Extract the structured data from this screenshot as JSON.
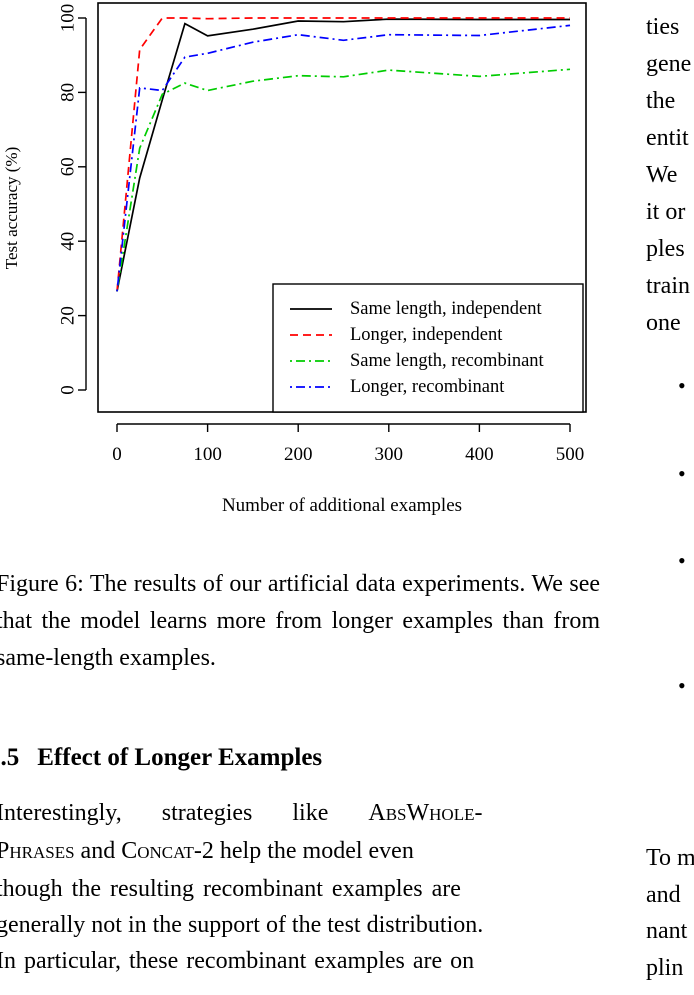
{
  "chart_data": {
    "type": "line",
    "xlabel": "Number of additional examples",
    "ylabel": "Test accuracy (%)",
    "xlim": [
      0,
      500
    ],
    "ylim": [
      0,
      100
    ],
    "xticks": [
      0,
      100,
      200,
      300,
      400,
      500
    ],
    "yticks": [
      0,
      20,
      40,
      60,
      80,
      100
    ],
    "legend_position": "bottom-right",
    "grid": false,
    "series": [
      {
        "name": "Same length, independent",
        "color": "#000000",
        "dash": "solid",
        "x": [
          0,
          25,
          50,
          75,
          100,
          150,
          200,
          250,
          300,
          400,
          500
        ],
        "y": [
          26.5,
          57,
          78,
          98.5,
          95.2,
          97,
          99.2,
          99.0,
          99.7,
          99.6,
          99.6
        ]
      },
      {
        "name": "Longer, independent",
        "color": "#ff0000",
        "dash": "dashed",
        "x": [
          0,
          25,
          50,
          75,
          100,
          150,
          200,
          250,
          300,
          400,
          500
        ],
        "y": [
          26.5,
          91.5,
          100,
          100,
          99.8,
          100,
          100,
          100,
          100,
          100,
          100
        ]
      },
      {
        "name": "Same length, recombinant",
        "color": "#00cc00",
        "dash": "dotdash",
        "x": [
          0,
          25,
          50,
          75,
          100,
          150,
          200,
          250,
          300,
          400,
          500
        ],
        "y": [
          26.5,
          65,
          79.5,
          82.5,
          80.5,
          83,
          84.5,
          84.2,
          86,
          84.3,
          86.2
        ]
      },
      {
        "name": "Longer, recombinant",
        "color": "#0000ff",
        "dash": "dotdash",
        "x": [
          0,
          25,
          50,
          75,
          100,
          150,
          200,
          250,
          300,
          400,
          500
        ],
        "y": [
          26.5,
          81.2,
          80.5,
          89.5,
          90.5,
          93.5,
          95.5,
          94,
          95.5,
          95.3,
          98
        ]
      }
    ]
  },
  "caption": "Figure 6: The results of our artificial data experiments. We see that the model learns more from longer examples than from same-length examples.",
  "section": {
    "number": "5.5",
    "title": "Effect of Longer Examples"
  },
  "body": {
    "line1_start": "Interestingly, strategies like ",
    "line1_term": "AbsWhole-",
    "line2_term_a": "Phrases",
    "line2_mid": " and ",
    "line2_term_b": "Concat",
    "line2_end": "-2 help the model even",
    "line3": "though the resulting recombinant examples are",
    "line4": "generally not in the support of the test distribution.",
    "line5": "In particular, these recombinant examples are on"
  },
  "right_column": {
    "fragments": [
      "ties",
      "gene",
      "the",
      "entit",
      "We",
      "it or",
      "ples",
      "train",
      "one"
    ],
    "lower_fragments": [
      "To m",
      "and",
      "nant",
      "plin"
    ],
    "bullet": "•"
  }
}
